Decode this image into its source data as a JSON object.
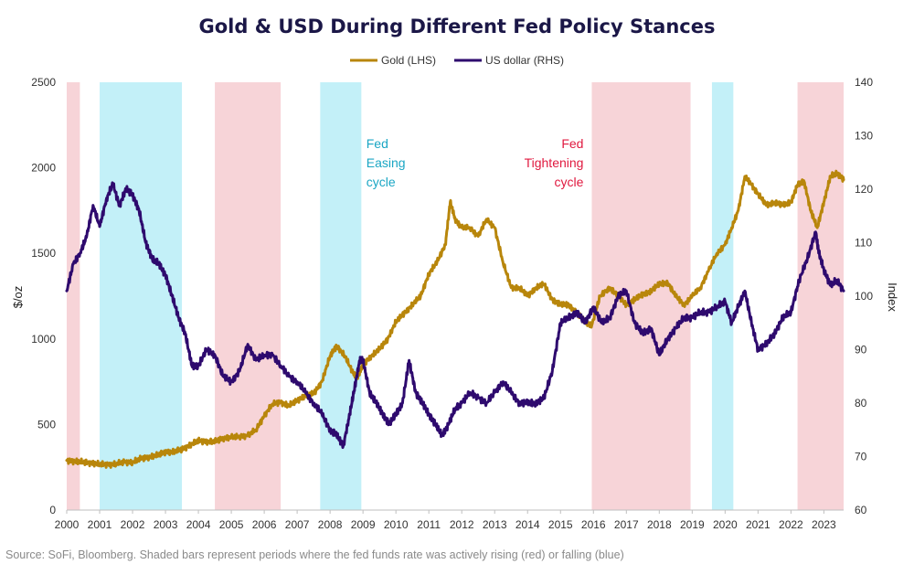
{
  "chart_data": {
    "type": "line",
    "title": "Gold & USD During Different Fed Policy Stances",
    "source": "Source: SoFi, Bloomberg. Shaded bars represent periods where the fed funds rate was actively rising (red) or falling (blue)",
    "ylabel_left": "$/oz",
    "ylabel_right": "Index",
    "xlim": [
      2000,
      2023.6
    ],
    "ylim_left": [
      0,
      2500
    ],
    "ylim_right": [
      60,
      140
    ],
    "x_ticks": [
      "2000",
      "2001",
      "2002",
      "2003",
      "2004",
      "2005",
      "2006",
      "2007",
      "2008",
      "2009",
      "2010",
      "2011",
      "2012",
      "2013",
      "2014",
      "2015",
      "2016",
      "2017",
      "2018",
      "2019",
      "2020",
      "2021",
      "2022",
      "2023"
    ],
    "y_ticks_left": [
      "0",
      "500",
      "1000",
      "1500",
      "2000",
      "2500"
    ],
    "y_ticks_right": [
      "60",
      "70",
      "80",
      "90",
      "100",
      "110",
      "120",
      "130",
      "140"
    ],
    "legend": [
      {
        "name": "Gold (LHS)",
        "color": "#b8860b"
      },
      {
        "name": "US dollar (RHS)",
        "color": "#2e0a6e"
      }
    ],
    "annotations": [
      {
        "lines": [
          "Fed",
          "Easing",
          "cycle"
        ],
        "color": "#1aa6c4",
        "x": 2009.1,
        "y_right": 126,
        "anchor": "start"
      },
      {
        "lines": [
          "Fed",
          "Tightening",
          "cycle"
        ],
        "color": "#e0193f",
        "x": 2015.7,
        "y_right": 126,
        "anchor": "end"
      }
    ],
    "shaded_periods": [
      {
        "start": 2000.0,
        "end": 2000.4,
        "type": "tightening",
        "color": "#f7d4d8"
      },
      {
        "start": 2001.0,
        "end": 2003.5,
        "type": "easing",
        "color": "#c3f0f8"
      },
      {
        "start": 2004.5,
        "end": 2006.5,
        "type": "tightening",
        "color": "#f7d4d8"
      },
      {
        "start": 2007.7,
        "end": 2008.95,
        "type": "easing",
        "color": "#c3f0f8"
      },
      {
        "start": 2015.95,
        "end": 2018.95,
        "type": "tightening",
        "color": "#f7d4d8"
      },
      {
        "start": 2019.6,
        "end": 2020.25,
        "type": "easing",
        "color": "#c3f0f8"
      },
      {
        "start": 2022.2,
        "end": 2023.6,
        "type": "tightening",
        "color": "#f7d4d8"
      }
    ],
    "series": [
      {
        "name": "Gold (LHS)",
        "axis": "left",
        "color": "#b8860b",
        "x": [
          2000.0,
          2000.25,
          2000.5,
          2000.75,
          2001.0,
          2001.25,
          2001.5,
          2001.75,
          2002.0,
          2002.25,
          2002.5,
          2002.75,
          2003.0,
          2003.25,
          2003.5,
          2003.75,
          2004.0,
          2004.25,
          2004.5,
          2004.75,
          2005.0,
          2005.25,
          2005.5,
          2005.75,
          2006.0,
          2006.25,
          2006.5,
          2006.75,
          2007.0,
          2007.25,
          2007.5,
          2007.75,
          2008.0,
          2008.2,
          2008.45,
          2008.7,
          2008.85,
          2009.0,
          2009.25,
          2009.5,
          2009.75,
          2010.0,
          2010.25,
          2010.5,
          2010.75,
          2011.0,
          2011.25,
          2011.5,
          2011.65,
          2011.8,
          2012.0,
          2012.25,
          2012.5,
          2012.75,
          2013.0,
          2013.25,
          2013.5,
          2013.75,
          2014.0,
          2014.25,
          2014.5,
          2014.75,
          2015.0,
          2015.25,
          2015.5,
          2015.75,
          2015.95,
          2016.2,
          2016.5,
          2016.75,
          2017.0,
          2017.25,
          2017.5,
          2017.75,
          2018.0,
          2018.25,
          2018.5,
          2018.75,
          2019.0,
          2019.25,
          2019.5,
          2019.75,
          2020.0,
          2020.2,
          2020.4,
          2020.6,
          2020.8,
          2021.0,
          2021.25,
          2021.5,
          2021.75,
          2022.0,
          2022.2,
          2022.4,
          2022.6,
          2022.8,
          2023.0,
          2023.2,
          2023.4,
          2023.6
        ],
        "values": [
          290,
          285,
          280,
          275,
          268,
          265,
          270,
          280,
          280,
          300,
          310,
          320,
          340,
          340,
          355,
          380,
          405,
          400,
          400,
          420,
          425,
          430,
          435,
          470,
          550,
          620,
          630,
          610,
          640,
          670,
          680,
          750,
          900,
          960,
          900,
          800,
          780,
          850,
          900,
          940,
          1000,
          1100,
          1150,
          1200,
          1250,
          1380,
          1450,
          1550,
          1800,
          1700,
          1650,
          1650,
          1600,
          1700,
          1650,
          1450,
          1300,
          1300,
          1250,
          1300,
          1320,
          1230,
          1200,
          1200,
          1150,
          1100,
          1080,
          1250,
          1300,
          1250,
          1200,
          1230,
          1260,
          1280,
          1320,
          1330,
          1250,
          1200,
          1250,
          1300,
          1400,
          1500,
          1550,
          1650,
          1750,
          1950,
          1900,
          1850,
          1780,
          1800,
          1780,
          1800,
          1900,
          1920,
          1750,
          1650,
          1800,
          1950,
          1970,
          1930
        ]
      },
      {
        "name": "US dollar (RHS)",
        "axis": "right",
        "color": "#2e0a6e",
        "x": [
          2000.0,
          2000.2,
          2000.4,
          2000.6,
          2000.8,
          2001.0,
          2001.2,
          2001.4,
          2001.6,
          2001.8,
          2002.0,
          2002.2,
          2002.4,
          2002.6,
          2002.8,
          2003.0,
          2003.2,
          2003.4,
          2003.6,
          2003.8,
          2004.0,
          2004.25,
          2004.5,
          2004.75,
          2005.0,
          2005.25,
          2005.5,
          2005.75,
          2006.0,
          2006.25,
          2006.5,
          2006.75,
          2007.0,
          2007.25,
          2007.5,
          2007.75,
          2008.0,
          2008.2,
          2008.4,
          2008.6,
          2008.75,
          2008.9,
          2009.0,
          2009.2,
          2009.4,
          2009.6,
          2009.8,
          2010.0,
          2010.2,
          2010.4,
          2010.6,
          2010.8,
          2011.0,
          2011.2,
          2011.4,
          2011.6,
          2011.8,
          2012.0,
          2012.25,
          2012.5,
          2012.75,
          2013.0,
          2013.25,
          2013.5,
          2013.75,
          2014.0,
          2014.25,
          2014.5,
          2014.75,
          2015.0,
          2015.25,
          2015.5,
          2015.75,
          2016.0,
          2016.25,
          2016.5,
          2016.75,
          2017.0,
          2017.25,
          2017.5,
          2017.75,
          2018.0,
          2018.25,
          2018.5,
          2018.75,
          2019.0,
          2019.25,
          2019.5,
          2019.75,
          2020.0,
          2020.2,
          2020.4,
          2020.6,
          2020.8,
          2021.0,
          2021.25,
          2021.5,
          2021.75,
          2022.0,
          2022.25,
          2022.5,
          2022.75,
          2022.85,
          2023.0,
          2023.2,
          2023.4,
          2023.6
        ],
        "values": [
          101,
          106,
          108,
          111,
          117,
          113,
          118,
          121,
          117,
          120,
          119,
          116,
          110,
          107,
          106,
          104,
          100,
          96,
          93,
          87,
          87,
          90,
          89,
          85,
          84,
          86,
          91,
          88,
          89,
          89,
          87,
          85,
          84,
          82,
          80,
          78,
          75,
          74,
          72,
          78,
          83,
          88,
          88,
          82,
          80,
          78,
          76,
          78,
          80,
          88,
          82,
          80,
          78,
          76,
          74,
          76,
          79,
          80,
          82,
          81,
          80,
          82,
          84,
          82,
          80,
          80,
          80,
          81,
          86,
          95,
          96,
          97,
          95,
          98,
          95,
          96,
          100,
          101,
          95,
          93,
          94,
          89,
          92,
          94,
          96,
          96,
          97,
          97,
          98,
          99,
          95,
          98,
          101,
          95,
          90,
          91,
          93,
          96,
          97,
          103,
          107,
          112,
          108,
          105,
          102,
          103,
          101
        ]
      }
    ]
  }
}
